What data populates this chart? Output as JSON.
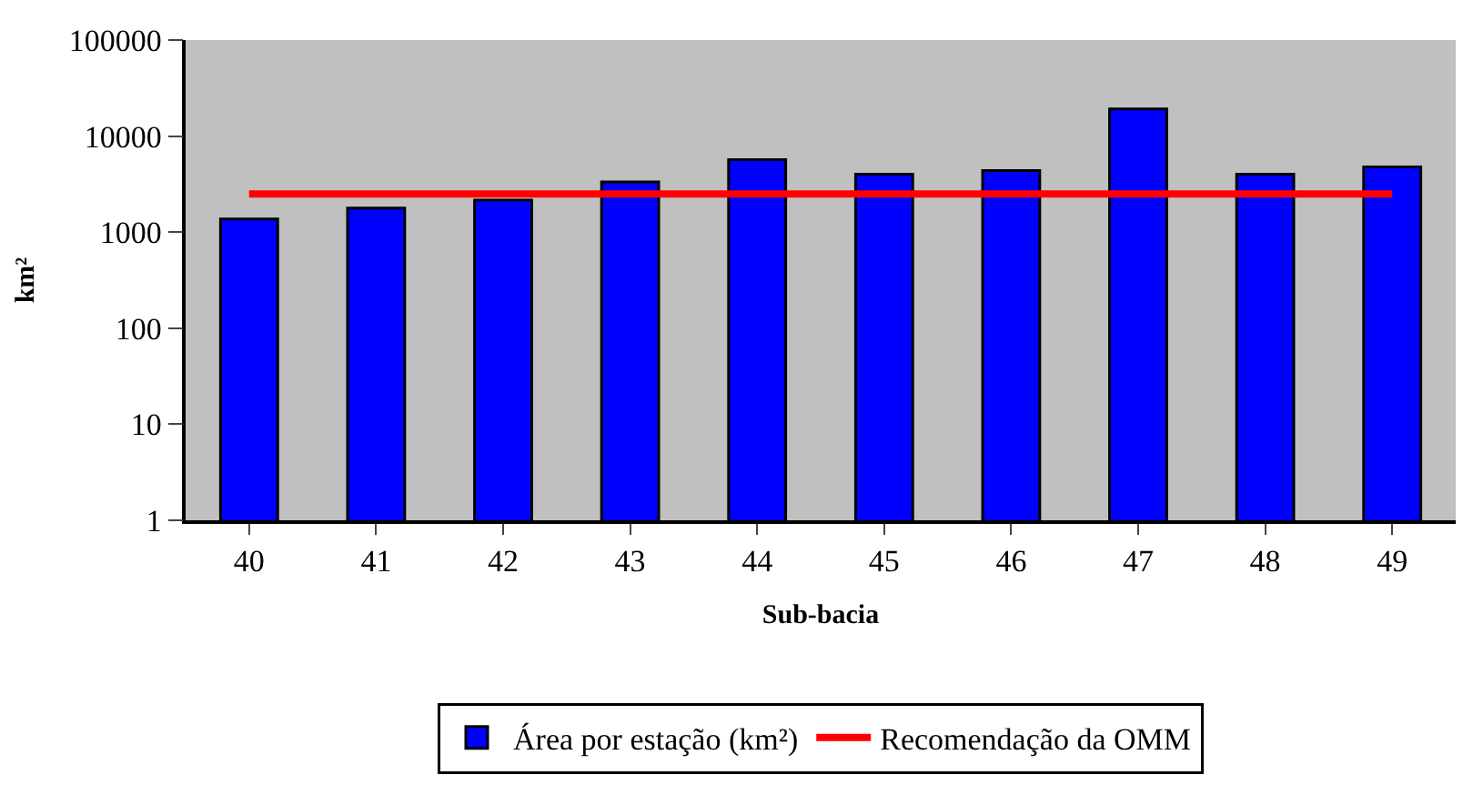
{
  "chart_data": {
    "type": "bar",
    "xlabel": "Sub-bacia",
    "ylabel": "km²",
    "categories": [
      "40",
      "41",
      "42",
      "43",
      "44",
      "45",
      "46",
      "47",
      "48",
      "49"
    ],
    "series": [
      {
        "name": "Área por estação (km²)",
        "color": "#0000ff",
        "values": [
          1370,
          1780,
          2160,
          3330,
          5700,
          4000,
          4380,
          19200,
          4000,
          4780
        ]
      },
      {
        "name": "Recomendação da OMM",
        "type": "line",
        "color": "#ff0000",
        "values": [
          2500,
          2500,
          2500,
          2500,
          2500,
          2500,
          2500,
          2500,
          2500,
          2500
        ]
      }
    ],
    "log": true,
    "ylim": [
      1,
      100000
    ],
    "yticks": [
      1,
      10,
      100,
      1000,
      10000,
      100000
    ],
    "grid": false,
    "legend": "bottom",
    "marker": "none",
    "line_style": "solid"
  }
}
